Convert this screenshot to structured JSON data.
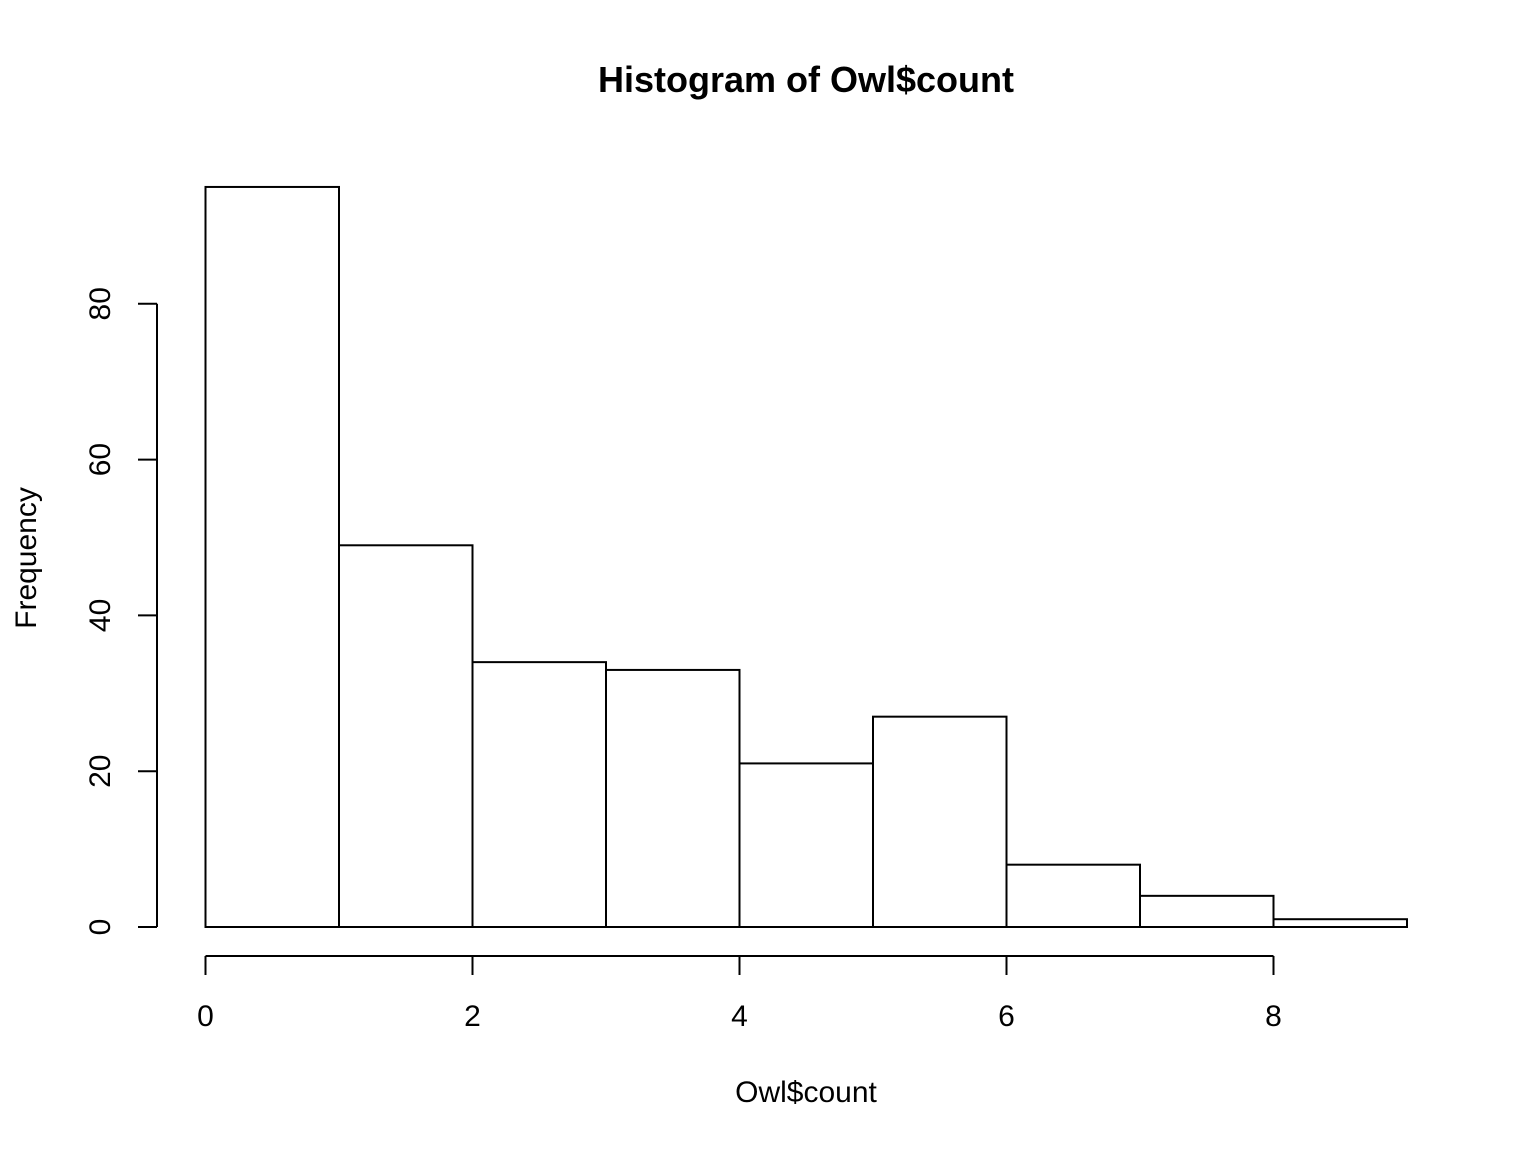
{
  "chart_data": {
    "type": "bar",
    "title": "Histogram of Owl$count",
    "xlabel": "Owl$count",
    "ylabel": "Frequency",
    "bins": [
      {
        "x0": 0,
        "x1": 1,
        "count": 95
      },
      {
        "x0": 1,
        "x1": 2,
        "count": 49
      },
      {
        "x0": 2,
        "x1": 3,
        "count": 34
      },
      {
        "x0": 3,
        "x1": 4,
        "count": 33
      },
      {
        "x0": 4,
        "x1": 5,
        "count": 21
      },
      {
        "x0": 5,
        "x1": 6,
        "count": 27
      },
      {
        "x0": 6,
        "x1": 7,
        "count": 8
      },
      {
        "x0": 7,
        "x1": 8,
        "count": 4
      },
      {
        "x0": 8,
        "x1": 9,
        "count": 1
      }
    ],
    "x_ticks": [
      0,
      2,
      4,
      6,
      8
    ],
    "y_ticks": [
      0,
      20,
      40,
      60,
      80
    ],
    "xlim": [
      0,
      9
    ],
    "ylim": [
      0,
      95
    ],
    "grid": false,
    "legend": "none"
  }
}
